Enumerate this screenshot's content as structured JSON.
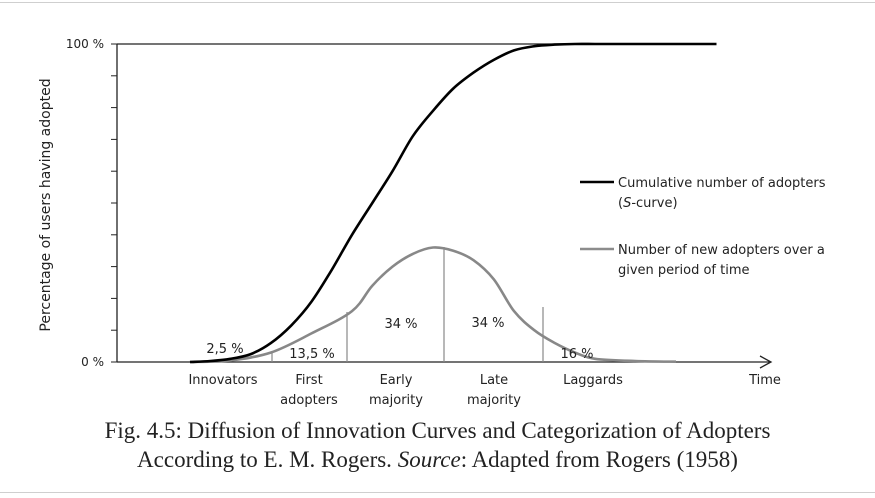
{
  "chart_data": {
    "type": "line",
    "ylabel": "Percentage of users having adopted",
    "xlabel": "Time",
    "yticks": [
      "0 %",
      "100 %"
    ],
    "ylim": [
      0,
      100
    ],
    "series": [
      {
        "name": "Cumulative number of adopters (S-curve)",
        "color": "#000000",
        "x": [
          0,
          5,
          10,
          15,
          20,
          25,
          30,
          35,
          40,
          45,
          50,
          55,
          60,
          65,
          70,
          75,
          80,
          85,
          90,
          95,
          100,
          105,
          110,
          115,
          120,
          125,
          130
        ],
        "values": [
          0,
          0.3,
          1,
          2.5,
          6,
          11.5,
          19,
          29,
          40,
          50,
          60,
          71,
          79,
          86,
          91,
          95,
          98,
          99.3,
          99.8,
          100,
          100,
          100,
          100,
          100,
          100,
          100,
          100
        ]
      },
      {
        "name": "Number of new adopters over a given period of time",
        "color": "#888888",
        "x": [
          0,
          10,
          20,
          30,
          40,
          45,
          50,
          55,
          60,
          65,
          70,
          75,
          80,
          85,
          90,
          95,
          100,
          110,
          120
        ],
        "values": [
          0,
          0.5,
          3,
          9,
          16,
          24,
          30,
          34,
          36,
          35,
          32,
          26,
          16,
          10,
          6,
          3,
          1,
          0.3,
          0.1
        ]
      }
    ],
    "segments": [
      {
        "label": "2,5 %",
        "category": "Innovators"
      },
      {
        "label": "13,5 %",
        "category_lines": [
          "First",
          "adopters"
        ]
      },
      {
        "label": "34 %",
        "category_lines": [
          "Early",
          "majority"
        ]
      },
      {
        "label": "34 %",
        "category_lines": [
          "Late",
          "majority"
        ]
      },
      {
        "label": "16 %",
        "category": "Laggards"
      }
    ],
    "legend_position": "right"
  },
  "caption": {
    "line1": "Fig. 4.5:    Diffusion of Innovation Curves and Categorization of Adopters",
    "line2_pre": "According to E. M. Rogers. ",
    "line2_src": "Source",
    "line2_post": ": Adapted from Rogers (1958)"
  }
}
